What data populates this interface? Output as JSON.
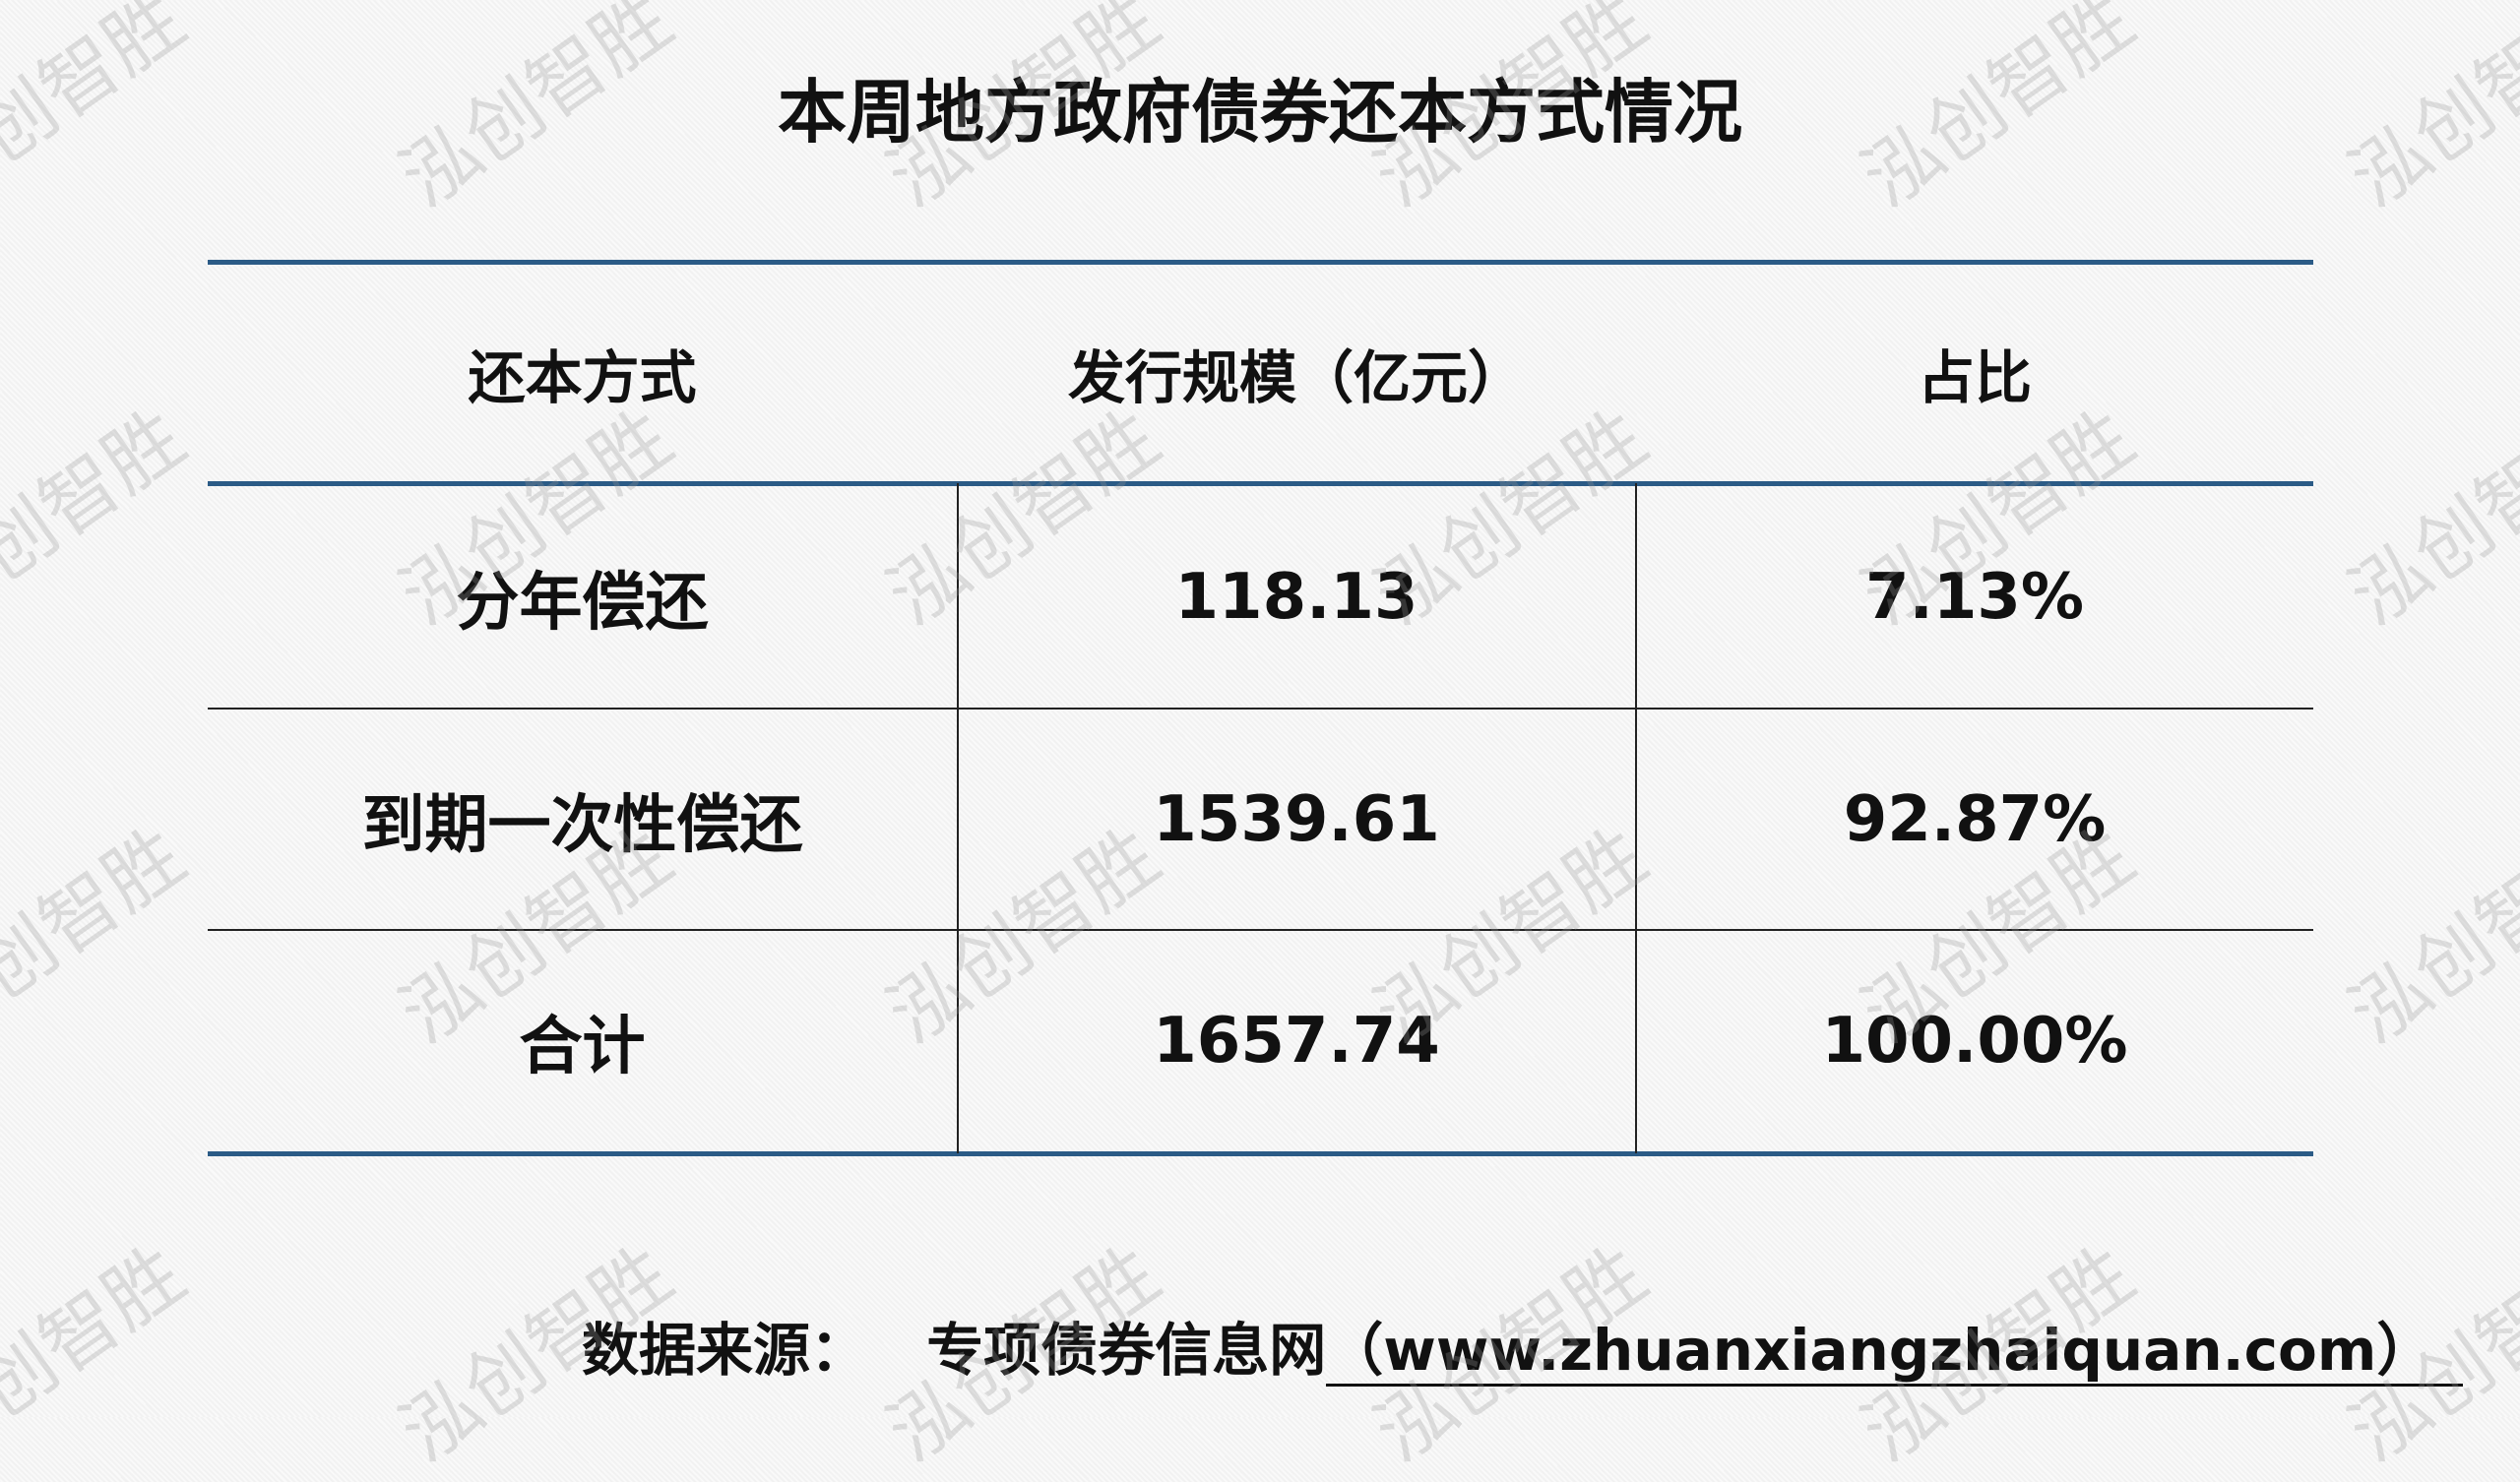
{
  "title": "本周地方政府债券还本方式情况",
  "watermark": "泓创智胜",
  "colors": {
    "rule": "#2b5b86",
    "background": "#f4f4f4"
  },
  "table": {
    "headers": [
      "还本方式",
      "发行规模（亿元）",
      "占比"
    ],
    "rows": [
      [
        "分年偿还",
        "118.13",
        "7.13%"
      ],
      [
        "到期一次性偿还",
        "1539.61",
        "92.87%"
      ],
      [
        "合计",
        "1657.74",
        "100.00%"
      ]
    ]
  },
  "footer": {
    "label": "数据来源：",
    "source": "专项债券信息网",
    "url": "（www.zhuanxiangzhaiquan.com）"
  }
}
